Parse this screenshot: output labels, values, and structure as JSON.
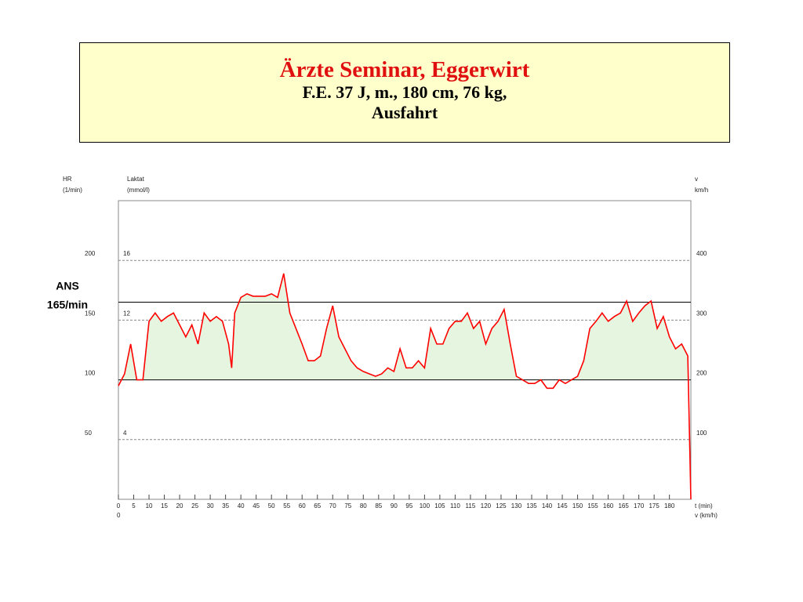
{
  "chart_data": {
    "type": "line",
    "title": "Ärzte Seminar, Eggerwirt",
    "subtitle": [
      "F.E. 37 J, m., 180 cm, 76 kg,",
      "Ausfahrt"
    ],
    "y_label": [
      "HR",
      "(1/min)"
    ],
    "y2_label": [
      "Laktat",
      "(mmol/l)"
    ],
    "y3_label": [
      "v",
      "km/h"
    ],
    "x_label": "t (min)",
    "x2_label": "v (km/h)",
    "x2ticks": [
      0
    ],
    "x": [
      0,
      2,
      4,
      6,
      8,
      10,
      12,
      14,
      16,
      18,
      20,
      22,
      24,
      26,
      28,
      30,
      32,
      34,
      36,
      37,
      38,
      40,
      42,
      44,
      46,
      48,
      50,
      52,
      54,
      56,
      58,
      60,
      62,
      64,
      66,
      68,
      70,
      72,
      74,
      76,
      78,
      80,
      82,
      84,
      86,
      88,
      90,
      92,
      94,
      96,
      98,
      100,
      102,
      104,
      106,
      108,
      110,
      112,
      114,
      116,
      118,
      120,
      122,
      124,
      126,
      128,
      130,
      132,
      134,
      136,
      138,
      140,
      142,
      144,
      146,
      148,
      150,
      152,
      154,
      156,
      158,
      160,
      162,
      164,
      166,
      168,
      170,
      172,
      174,
      176,
      178,
      180,
      182,
      184,
      186,
      187
    ],
    "series": [
      {
        "name": "HR",
        "color": "#ff0000",
        "fill": "#e6f5df",
        "values": [
          95,
          105,
          130,
          100,
          100,
          149,
          156,
          149,
          153,
          156,
          146,
          136,
          146,
          130,
          156,
          149,
          153,
          149,
          130,
          110,
          156,
          169,
          172,
          170,
          170,
          170,
          172,
          169,
          189,
          156,
          143,
          130,
          116,
          116,
          120,
          143,
          162,
          136,
          126,
          116,
          110,
          107,
          105,
          103,
          105,
          110,
          107,
          126,
          110,
          110,
          116,
          110,
          143,
          130,
          130,
          143,
          149,
          149,
          156,
          143,
          149,
          130,
          143,
          149,
          159,
          130,
          103,
          100,
          97,
          97,
          100,
          93,
          93,
          100,
          97,
          100,
          103,
          116,
          143,
          149,
          156,
          149,
          153,
          156,
          166,
          149,
          156,
          162,
          166,
          143,
          153,
          136,
          126,
          130,
          120,
          0
        ]
      }
    ],
    "xlim": [
      0,
      187
    ],
    "xticks": [
      0,
      5,
      10,
      15,
      20,
      25,
      30,
      35,
      40,
      45,
      50,
      55,
      60,
      65,
      70,
      75,
      80,
      85,
      90,
      95,
      100,
      105,
      110,
      115,
      120,
      125,
      130,
      135,
      140,
      145,
      150,
      155,
      160,
      165,
      170,
      175,
      180
    ],
    "ylim": [
      0,
      250
    ],
    "yticks": [
      50,
      100,
      150,
      200
    ],
    "y2lim": [
      0,
      20
    ],
    "y2ticks": [
      4,
      12,
      16
    ],
    "y3lim": [
      0,
      500
    ],
    "y3ticks": [
      100,
      200,
      300,
      400
    ],
    "grid": true,
    "reference_lines": [
      {
        "value": 165,
        "label": [
          "ANS",
          "165/min"
        ]
      },
      {
        "value": 100
      }
    ]
  }
}
